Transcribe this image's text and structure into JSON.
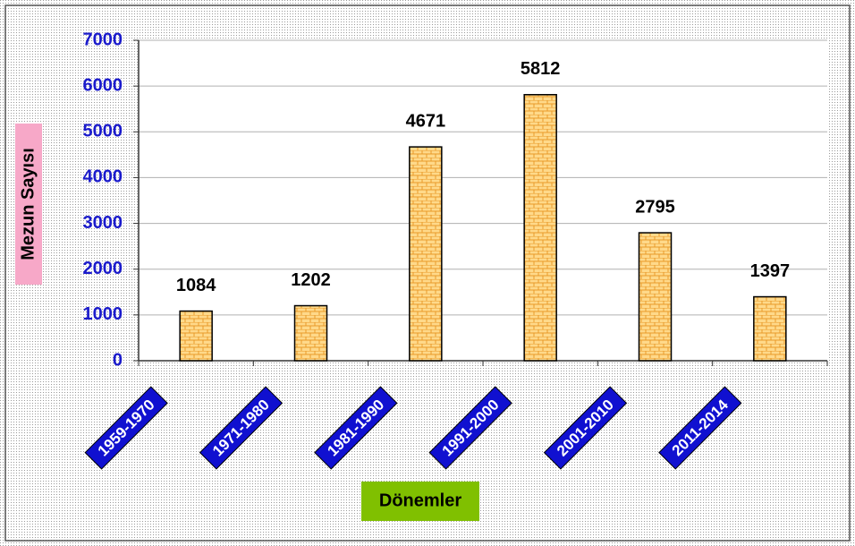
{
  "chart_data": {
    "type": "bar",
    "x_label": "Dönemler",
    "y_label": "Mezun Sayısı",
    "categories": [
      "1959-1970",
      "1971-1980",
      "1981-1990",
      "1991-2000",
      "2001-2010",
      "2011-2014"
    ],
    "values": [
      1084,
      1202,
      4671,
      5812,
      2795,
      1397
    ],
    "color": "#ffd166",
    "ylim": [
      0,
      7000
    ],
    "yticks": [
      0,
      1000,
      2000,
      3000,
      4000,
      5000,
      6000,
      7000
    ],
    "grid": true
  }
}
